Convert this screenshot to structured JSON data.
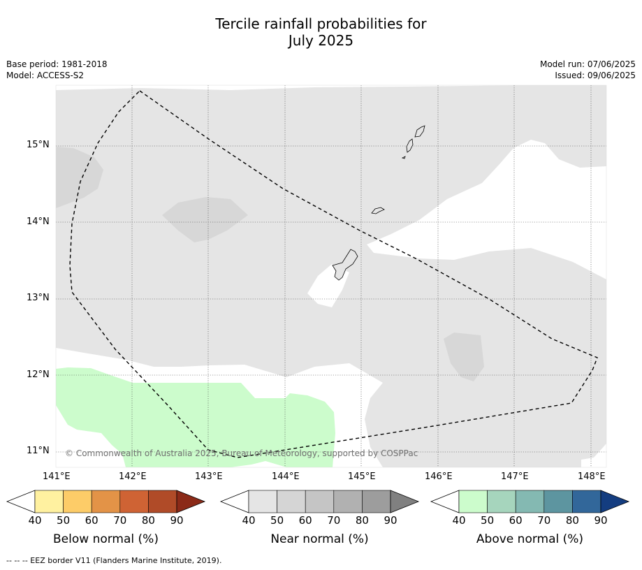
{
  "title_line1": "Tercile rainfall probabilities for",
  "title_line2": "July 2025",
  "meta": {
    "base_period": "Base period: 1981-2018",
    "model": "Model: ACCESS-S2",
    "model_run": "Model run: 07/06/2025",
    "issued": "Issued: 09/06/2025"
  },
  "map": {
    "lon_labels": [
      "141°E",
      "142°E",
      "143°E",
      "144°E",
      "145°E",
      "146°E",
      "147°E",
      "148°E"
    ],
    "lat_labels": [
      "15°N",
      "14°N",
      "13°N",
      "12°N",
      "11°N"
    ],
    "copyright": "© Commonwealth of Australia 2025, Bureau of Meteorology, supported by COSPPac",
    "colors": {
      "near_40": "#e5e5e5",
      "near_50": "#d7d7d7",
      "above_40": "#ccfccc",
      "outside": "#ffffff"
    }
  },
  "colorbars": [
    {
      "title": "Below normal (%)",
      "ticks": [
        "40",
        "50",
        "60",
        "70",
        "80",
        "90"
      ],
      "colors": [
        "#fff1a0",
        "#fdcc68",
        "#e39347",
        "#cf6334",
        "#b04b28",
        "#8b2a18"
      ]
    },
    {
      "title": "Near normal (%)",
      "ticks": [
        "40",
        "50",
        "60",
        "70",
        "80",
        "90"
      ],
      "colors": [
        "#e5e5e5",
        "#d5d5d5",
        "#c5c5c5",
        "#b1b1b1",
        "#9d9d9d",
        "#808080"
      ]
    },
    {
      "title": "Above normal (%)",
      "ticks": [
        "40",
        "50",
        "60",
        "70",
        "80",
        "90"
      ],
      "colors": [
        "#ccfccc",
        "#a6d5bd",
        "#84b9b2",
        "#5d95a0",
        "#32679a",
        "#143d80"
      ]
    }
  ],
  "footnote": "--  --  -- EEZ border V11 (Flanders Marine Institute, 2019)."
}
